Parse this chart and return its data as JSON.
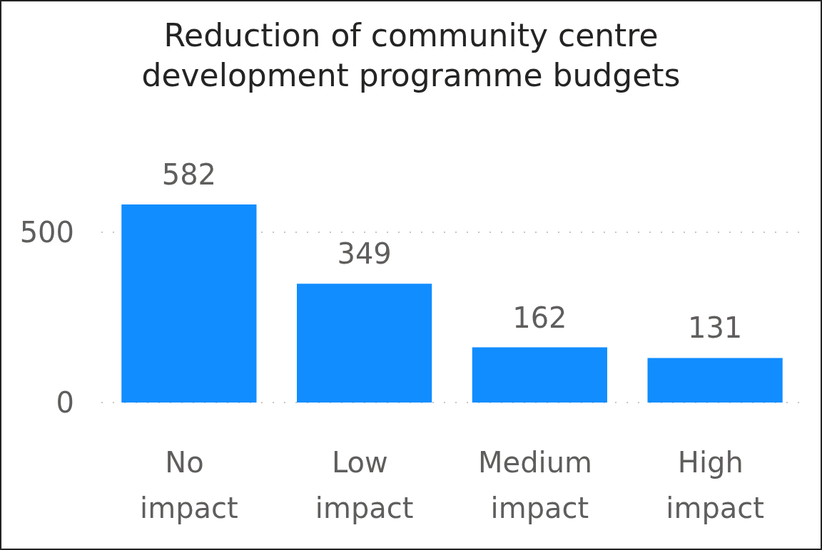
{
  "chart_data": {
    "type": "bar",
    "title": "Reduction of community centre\ndevelopment programme budgets",
    "categories": [
      "No impact",
      "Low impact",
      "Medium impact",
      "High impact"
    ],
    "values": [
      582,
      349,
      162,
      131
    ],
    "color": "#118dff",
    "ylim": [
      0,
      582
    ],
    "yticks": [
      0,
      500
    ],
    "grid": "y",
    "data_labels": true
  }
}
